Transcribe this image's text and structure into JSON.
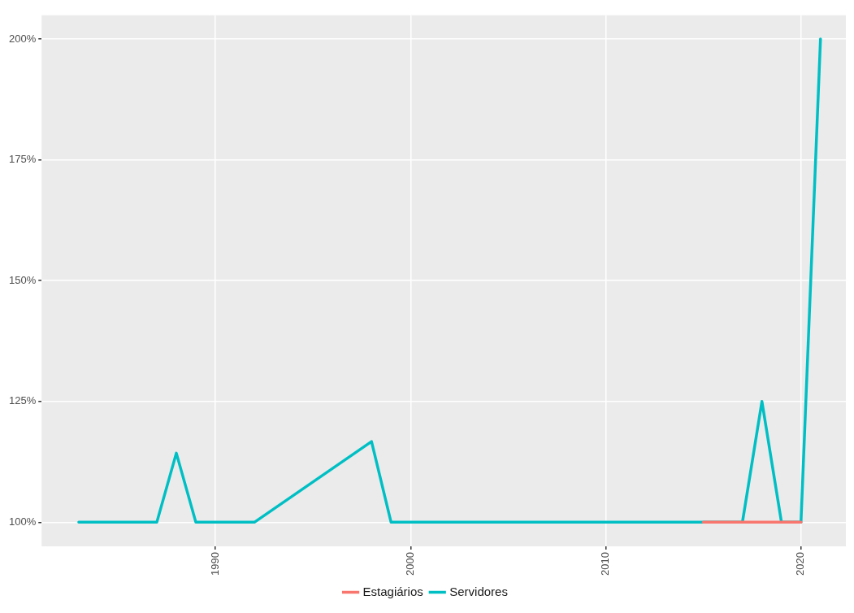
{
  "chart_data": {
    "type": "line",
    "legend": "bottom",
    "grid": true,
    "marker": "none",
    "line_style": "solid",
    "xlim": [
      1981.1,
      2022.3
    ],
    "xticks": [
      1990,
      2000,
      2010,
      2020
    ],
    "ylim": [
      95,
      204.9
    ],
    "yticks": [
      {
        "value": 100,
        "label": "100%"
      },
      {
        "value": 125,
        "label": "125%"
      },
      {
        "value": 150,
        "label": "150%"
      },
      {
        "value": 175,
        "label": "175%"
      },
      {
        "value": 200,
        "label": "200%"
      }
    ],
    "series": [
      {
        "name": "Estagiários",
        "color": "#f8766d",
        "x": [
          2015,
          2016,
          2017,
          2018,
          2019,
          2020
        ],
        "values": [
          100,
          100,
          100,
          100,
          100,
          100
        ]
      },
      {
        "name": "Servidores",
        "color": "#00bfc4",
        "x": [
          1983,
          1987,
          1988,
          1989,
          1992,
          1998,
          1999,
          2017,
          2018,
          2019,
          2020,
          2021
        ],
        "values": [
          100,
          100,
          114.3,
          100,
          100,
          116.7,
          100,
          100,
          125,
          100,
          100,
          200
        ]
      }
    ]
  }
}
